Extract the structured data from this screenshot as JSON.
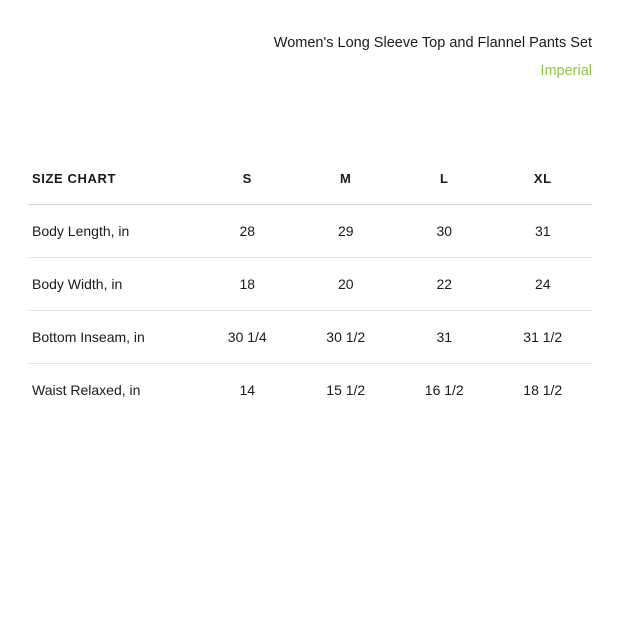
{
  "header": {
    "product_title": "Women's Long Sleeve Top and Flannel Pants Set",
    "unit_label": "Imperial"
  },
  "table": {
    "heading": "SIZE CHART",
    "columns": [
      "S",
      "M",
      "L",
      "XL"
    ],
    "rows": [
      {
        "label": "Body Length, in",
        "values": [
          "28",
          "29",
          "30",
          "31"
        ]
      },
      {
        "label": "Body Width, in",
        "values": [
          "18",
          "20",
          "22",
          "24"
        ]
      },
      {
        "label": "Bottom Inseam, in",
        "values": [
          "30 1/4",
          "30 1/2",
          "31",
          "31 1/2"
        ]
      },
      {
        "label": "Waist Relaxed, in",
        "values": [
          "14",
          "15 1/2",
          "16 1/2",
          "18 1/2"
        ]
      }
    ]
  },
  "colors": {
    "accent": "#8cc63f",
    "text": "#1a1a1a",
    "border": "#d9d9d9",
    "row_border": "#e5e5e5",
    "background": "#ffffff"
  }
}
